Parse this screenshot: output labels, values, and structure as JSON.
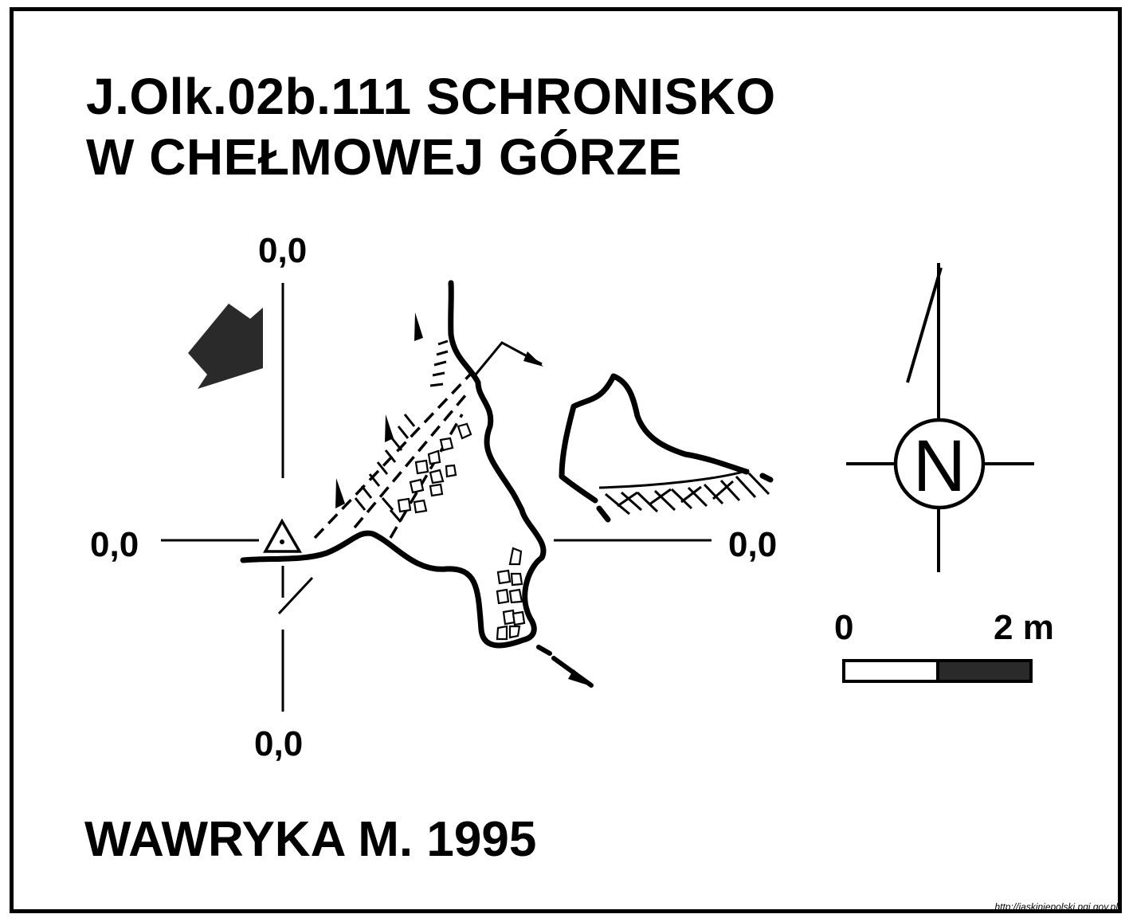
{
  "title": {
    "line1": "J.Olk.02b.111  SCHRONISKO",
    "line2": "W CHEŁMOWEJ GÓRZE"
  },
  "coordinates": {
    "top": "0,0",
    "left": "0,0",
    "right": "0,0",
    "bottom": "0,0"
  },
  "compass": {
    "letter": "N"
  },
  "scale": {
    "start": "0",
    "end": "2 m"
  },
  "author": "WAWRYKA M. 1995",
  "source_url": "http://jaskiniepolski.pgi.gov.pl",
  "colors": {
    "ink": "#000000",
    "background": "#ffffff",
    "arrow": "#2a2a2a"
  }
}
